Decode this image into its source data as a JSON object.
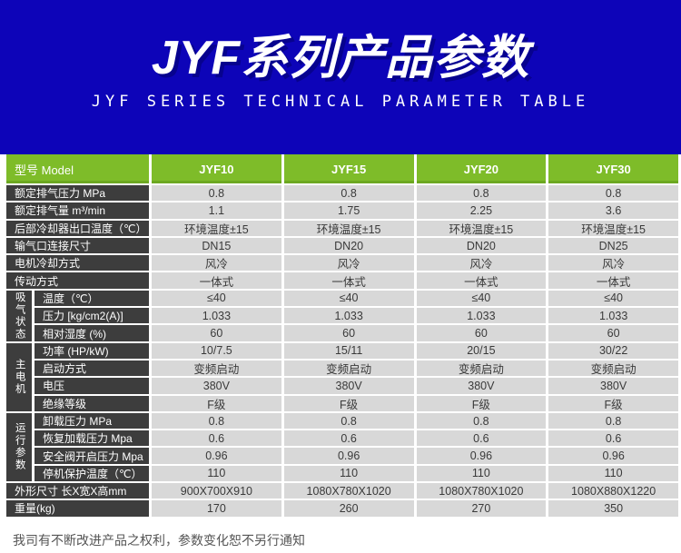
{
  "banner": {
    "title": "JYF系列产品参数",
    "subtitle": "JYF SERIES TECHNICAL PARAMETER TABLE"
  },
  "colors": {
    "banner_bg": "#0d04b8",
    "header_green": "#7ebc29",
    "label_dark": "#3d3d3d",
    "cell_gray": "#d8d8d8",
    "value_text": "#3a3a3a",
    "note_text": "#555555"
  },
  "table": {
    "header": {
      "model_label": "型号 Model",
      "columns": [
        "JYF10",
        "JYF15",
        "JYF20",
        "JYF30"
      ]
    },
    "rows": [
      {
        "label": "额定排气压力 MPa",
        "values": [
          "0.8",
          "0.8",
          "0.8",
          "0.8"
        ]
      },
      {
        "label": "额定排气量 m³/min",
        "values": [
          "1.1",
          "1.75",
          "2.25",
          "3.6"
        ]
      },
      {
        "label": "后部冷却器出口温度（℃）",
        "values": [
          "环境温度±15",
          "环境温度±15",
          "环境温度±15",
          "环境温度±15"
        ]
      },
      {
        "label": "输气口连接尺寸",
        "values": [
          "DN15",
          "DN20",
          "DN20",
          "DN25"
        ]
      },
      {
        "label": "电机冷却方式",
        "values": [
          "风冷",
          "风冷",
          "风冷",
          "风冷"
        ]
      },
      {
        "label": "传动方式",
        "values": [
          "一体式",
          "一体式",
          "一体式",
          "一体式"
        ]
      },
      {
        "group": "吸气状态",
        "group_span": 3,
        "label": "温度（℃）",
        "values": [
          "≤40",
          "≤40",
          "≤40",
          "≤40"
        ]
      },
      {
        "in_group": true,
        "label": "压力 [kg/cm2(A)]",
        "values": [
          "1.033",
          "1.033",
          "1.033",
          "1.033"
        ]
      },
      {
        "in_group": true,
        "label": "相对湿度 (%)",
        "values": [
          "60",
          "60",
          "60",
          "60"
        ]
      },
      {
        "group": "主电机",
        "group_span": 4,
        "label": "功率 (HP/kW)",
        "values": [
          "10/7.5",
          "15/11",
          "20/15",
          "30/22"
        ]
      },
      {
        "in_group": true,
        "label": "启动方式",
        "values": [
          "变频启动",
          "变频启动",
          "变频启动",
          "变频启动"
        ]
      },
      {
        "in_group": true,
        "label": "电压",
        "values": [
          "380V",
          "380V",
          "380V",
          "380V"
        ]
      },
      {
        "in_group": true,
        "label": "绝缘等级",
        "values": [
          "F级",
          "F级",
          "F级",
          "F级"
        ]
      },
      {
        "group": "运行参数",
        "group_span": 4,
        "label": "卸载压力 MPa",
        "values": [
          "0.8",
          "0.8",
          "0.8",
          "0.8"
        ]
      },
      {
        "in_group": true,
        "label": "恢复加载压力 Mpa",
        "values": [
          "0.6",
          "0.6",
          "0.6",
          "0.6"
        ]
      },
      {
        "in_group": true,
        "label": "安全阀开启压力 Mpa",
        "values": [
          "0.96",
          "0.96",
          "0.96",
          "0.96"
        ]
      },
      {
        "in_group": true,
        "label": "停机保护温度（℃）",
        "values": [
          "110",
          "110",
          "110",
          "110"
        ]
      },
      {
        "label": "外形尺寸 长X宽X高mm",
        "values": [
          "900X700X910",
          "1080X780X1020",
          "1080X780X1020",
          "1080X880X1220"
        ]
      },
      {
        "label": "重量(kg)",
        "values": [
          "170",
          "260",
          "270",
          "350"
        ]
      }
    ]
  },
  "footer": {
    "note": "我司有不断改进产品之权利，参数变化恕不另行通知"
  }
}
